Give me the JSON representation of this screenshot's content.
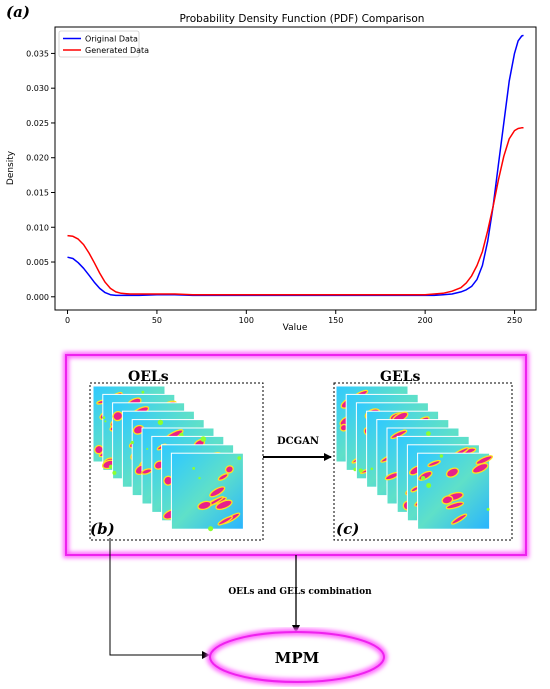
{
  "panel_labels": {
    "a": "(a)",
    "b": "(b)",
    "c": "(c)"
  },
  "chart_data": {
    "type": "line",
    "title": "Probability Density Function (PDF) Comparison",
    "xlabel": "Value",
    "ylabel": "Density",
    "xlim": [
      -7,
      262
    ],
    "ylim": [
      -0.0019,
      0.0388
    ],
    "x_ticks": [
      0,
      50,
      100,
      150,
      200,
      250
    ],
    "x_tick_labels": [
      "0",
      "50",
      "100",
      "150",
      "200",
      "250"
    ],
    "y_ticks": [
      0.0,
      0.005,
      0.01,
      0.015,
      0.02,
      0.025,
      0.03,
      0.035
    ],
    "y_tick_labels": [
      "0.000",
      "0.005",
      "0.010",
      "0.015",
      "0.020",
      "0.025",
      "0.030",
      "0.035"
    ],
    "grid": false,
    "legend_position": "top-left",
    "series": [
      {
        "name": "Original Data",
        "color": "#0000ff",
        "x": [
          0,
          3,
          6,
          9,
          12,
          15,
          18,
          21,
          24,
          27,
          30,
          35,
          40,
          50,
          60,
          70,
          80,
          90,
          100,
          110,
          120,
          130,
          140,
          150,
          160,
          170,
          180,
          190,
          200,
          205,
          210,
          215,
          220,
          223,
          226,
          229,
          232,
          235,
          238,
          241,
          244,
          247,
          250,
          252,
          254,
          255
        ],
        "values": [
          0.0057,
          0.0055,
          0.0049,
          0.0041,
          0.0031,
          0.0021,
          0.0012,
          0.0006,
          0.0003,
          0.0002,
          0.0002,
          0.0002,
          0.0002,
          0.0003,
          0.0003,
          0.0002,
          0.0002,
          0.0002,
          0.0002,
          0.0002,
          0.0002,
          0.0002,
          0.0002,
          0.0002,
          0.0002,
          0.0002,
          0.0002,
          0.0002,
          0.0002,
          0.0002,
          0.0003,
          0.0004,
          0.0007,
          0.001,
          0.0015,
          0.0025,
          0.0045,
          0.008,
          0.013,
          0.019,
          0.025,
          0.031,
          0.035,
          0.0368,
          0.0375,
          0.0376
        ]
      },
      {
        "name": "Generated Data",
        "color": "#ff0000",
        "x": [
          0,
          3,
          6,
          9,
          12,
          15,
          18,
          21,
          24,
          27,
          30,
          35,
          40,
          50,
          60,
          70,
          80,
          90,
          100,
          110,
          120,
          130,
          140,
          150,
          160,
          170,
          180,
          190,
          200,
          205,
          210,
          215,
          220,
          223,
          226,
          229,
          232,
          235,
          238,
          241,
          244,
          247,
          250,
          252,
          254,
          255
        ],
        "values": [
          0.0088,
          0.0087,
          0.0083,
          0.0075,
          0.0063,
          0.0049,
          0.0034,
          0.0021,
          0.0012,
          0.0007,
          0.0005,
          0.0004,
          0.0004,
          0.0004,
          0.0004,
          0.0003,
          0.0003,
          0.0003,
          0.0003,
          0.0003,
          0.0003,
          0.0003,
          0.0003,
          0.0003,
          0.0003,
          0.0003,
          0.0003,
          0.0003,
          0.0003,
          0.0004,
          0.0005,
          0.0008,
          0.0013,
          0.002,
          0.003,
          0.0045,
          0.0065,
          0.0095,
          0.013,
          0.0168,
          0.0202,
          0.0227,
          0.0239,
          0.0242,
          0.0243,
          0.0243
        ]
      }
    ]
  },
  "diagram": {
    "oels_label": "OELs",
    "gels_label": "GELs",
    "dcgan_label": "DCGAN",
    "combination_label": "OELs and GELs combination",
    "mpm_label": "MPM"
  }
}
